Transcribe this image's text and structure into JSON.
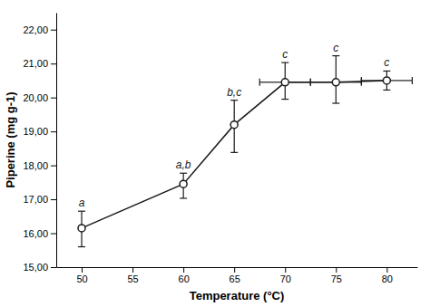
{
  "chart_data": {
    "type": "line",
    "x": [
      50,
      60,
      65,
      70,
      75,
      80
    ],
    "series": [
      {
        "values": [
          16.15,
          17.45,
          19.2,
          20.45,
          20.45,
          20.5
        ],
        "y_error_lower": [
          0.55,
          0.42,
          0.82,
          0.5,
          0.62,
          0.28
        ],
        "y_error_upper": [
          0.5,
          0.32,
          0.72,
          0.58,
          0.78,
          0.28
        ],
        "x_error_lower": [
          0,
          0,
          0,
          2.5,
          2.5,
          2.5
        ],
        "x_error_upper": [
          0,
          0,
          0,
          2.5,
          2.5,
          2.5
        ],
        "annotations": [
          "a",
          "a,b",
          "b,c",
          "c",
          "c",
          "c"
        ],
        "color": "#1a1a1a",
        "marker": "circle",
        "line_style": "solid"
      }
    ],
    "x_label": "Temperature (°C)",
    "y_label": "Piperine (mg g-1)",
    "xlim": [
      47.5,
      83
    ],
    "ylim": [
      15.0,
      22.5
    ],
    "xticks": [
      50,
      55,
      60,
      65,
      70,
      75,
      80
    ],
    "yticks": [
      {
        "value": 15.0,
        "label": "15,00"
      },
      {
        "value": 16.0,
        "label": "16,00"
      },
      {
        "value": 17.0,
        "label": "17,00"
      },
      {
        "value": 18.0,
        "label": "18,00"
      },
      {
        "value": 19.0,
        "label": "19,00"
      },
      {
        "value": 20.0,
        "label": "20,00"
      },
      {
        "value": 21.0,
        "label": "21,00"
      },
      {
        "value": 22.0,
        "label": "22,00"
      }
    ],
    "grid": false
  }
}
